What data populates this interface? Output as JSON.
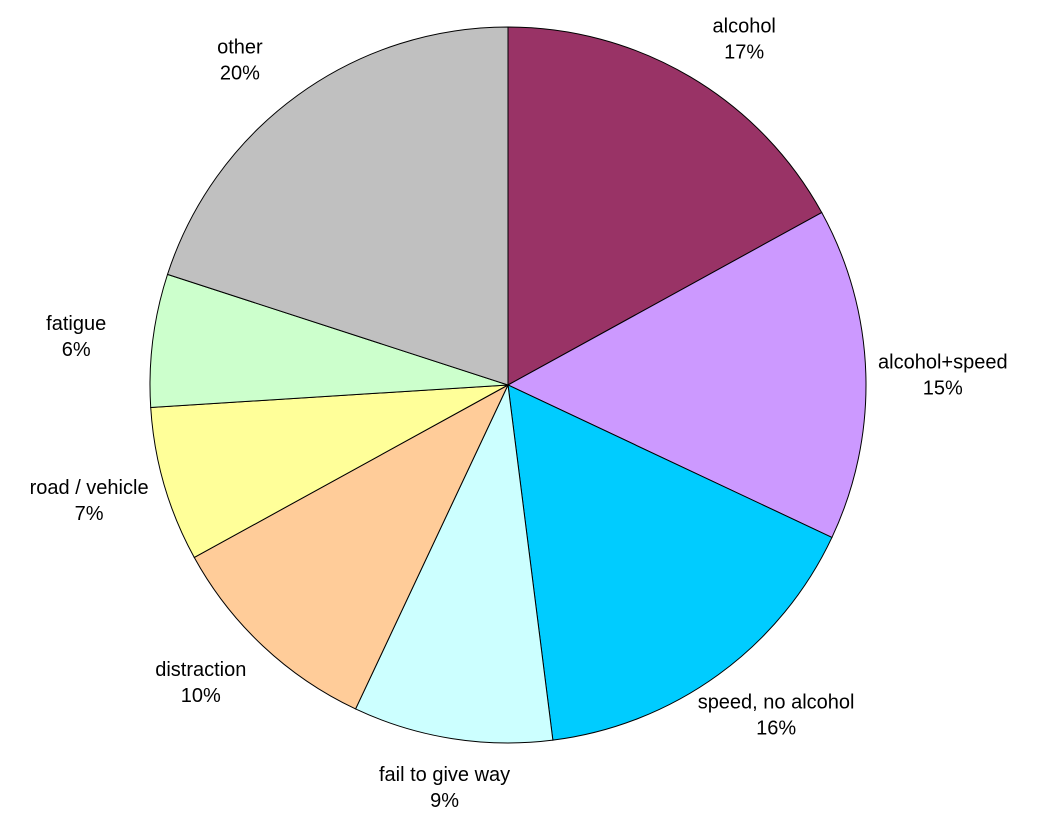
{
  "chart_data": {
    "type": "pie",
    "start_angle_deg": 0,
    "direction": "clockwise",
    "legend": "none",
    "slices": [
      {
        "label": "alcohol",
        "percent_label": "17%",
        "value": 17,
        "color": "#993366"
      },
      {
        "label": "alcohol+speed",
        "percent_label": "15%",
        "value": 15,
        "color": "#CC99FF"
      },
      {
        "label": "speed, no alcohol",
        "percent_label": "16%",
        "value": 16,
        "color": "#00CCFF"
      },
      {
        "label": "fail to give way",
        "percent_label": "9%",
        "value": 9,
        "color": "#CCFFFF"
      },
      {
        "label": "distraction",
        "percent_label": "10%",
        "value": 10,
        "color": "#FFCC99"
      },
      {
        "label": "road / vehicle",
        "percent_label": "7%",
        "value": 7,
        "color": "#FFFF99"
      },
      {
        "label": "fatigue",
        "percent_label": "6%",
        "value": 6,
        "color": "#CCFFCC"
      },
      {
        "label": "other",
        "percent_label": "20%",
        "value": 20,
        "color": "#C0C0C0"
      }
    ]
  }
}
